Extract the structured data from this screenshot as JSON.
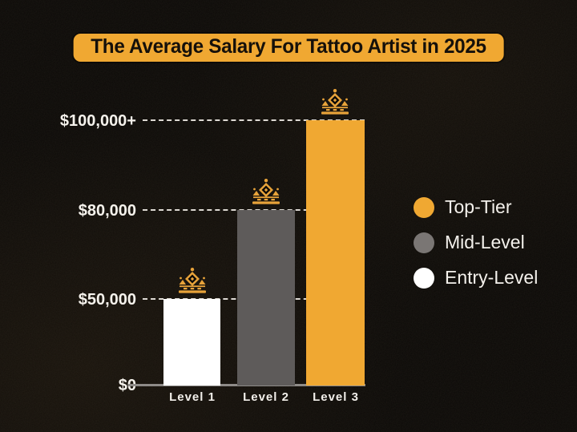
{
  "title": "The Average Salary For Tattoo Artist in 2025",
  "chart_data": {
    "type": "bar",
    "title": "The Average Salary For Tattoo Artist in 2025",
    "categories": [
      "Level 1",
      "Level 2",
      "Level 3"
    ],
    "values": [
      50000,
      80000,
      100000
    ],
    "value_labels": [
      "$50,000",
      "$80,000",
      "$100,000+"
    ],
    "bar_tiers": [
      "Entry-Level",
      "Mid-Level",
      "Top-Tier"
    ],
    "bar_colors": [
      "#ffffff",
      "#5e5b5a",
      "#f0a832"
    ],
    "xlabel": "",
    "ylabel": "",
    "ylim": [
      0,
      100000
    ],
    "y_ticks": [
      {
        "value": 0,
        "label": "$0"
      },
      {
        "value": 50000,
        "label": "$50,000"
      },
      {
        "value": 80000,
        "label": "$80,000"
      },
      {
        "value": 100000,
        "label": "$100,000+"
      }
    ],
    "grid": "dashed-horizontal-at-ticks",
    "legend_position": "right",
    "annotations": [
      "crown icon above each bar"
    ]
  },
  "legend": {
    "items": [
      {
        "label": "Top-Tier",
        "color": "#f0a832"
      },
      {
        "label": "Mid-Level",
        "color": "#7a7674"
      },
      {
        "label": "Entry-Level",
        "color": "#ffffff"
      }
    ]
  },
  "colors": {
    "background": "#0b0907",
    "banner": "#f0a832",
    "banner_text": "#15100a",
    "axis_text": "#f5f2ec",
    "gridline": "#ddd9d3",
    "baseline": "#8e8b88",
    "crown_gold": "#e8a33a"
  }
}
